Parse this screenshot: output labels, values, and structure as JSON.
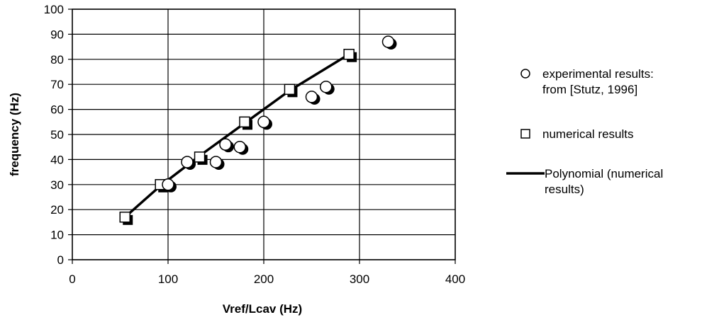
{
  "chart_data": {
    "type": "scatter",
    "xlabel": "Vref/Lcav (Hz)",
    "ylabel": "frequency (Hz)",
    "xlim": [
      0,
      400
    ],
    "ylim": [
      0,
      100
    ],
    "xticks": [
      "0",
      "100",
      "200",
      "300",
      "400"
    ],
    "yticks": [
      "0",
      "10",
      "20",
      "30",
      "40",
      "50",
      "60",
      "70",
      "80",
      "90",
      "100"
    ],
    "grid": true,
    "legend_position": "right",
    "series": [
      {
        "name": " experimental results: from [Stutz, 1996]",
        "name_lines": [
          " experimental results:",
          "from [Stutz, 1996]"
        ],
        "marker": "circle",
        "points": [
          [
            100,
            30
          ],
          [
            120,
            39
          ],
          [
            150,
            39
          ],
          [
            160,
            46
          ],
          [
            175,
            45
          ],
          [
            200,
            55
          ],
          [
            250,
            65
          ],
          [
            265,
            69
          ],
          [
            330,
            87
          ]
        ]
      },
      {
        "name": "numerical results",
        "name_lines": [
          "numerical results"
        ],
        "marker": "square",
        "points": [
          [
            55,
            17
          ],
          [
            92,
            30
          ],
          [
            133,
            41
          ],
          [
            180,
            55
          ],
          [
            227,
            68
          ],
          [
            289,
            82
          ]
        ]
      },
      {
        "name": "Polynomial (numerical results)",
        "name_lines": [
          "Polynomial (numerical",
          "results)"
        ],
        "marker": "line",
        "points": [
          [
            55,
            17
          ],
          [
            92,
            29.5
          ],
          [
            133,
            41.5
          ],
          [
            180,
            54.5
          ],
          [
            227,
            67.5
          ],
          [
            289,
            82
          ]
        ]
      }
    ]
  }
}
